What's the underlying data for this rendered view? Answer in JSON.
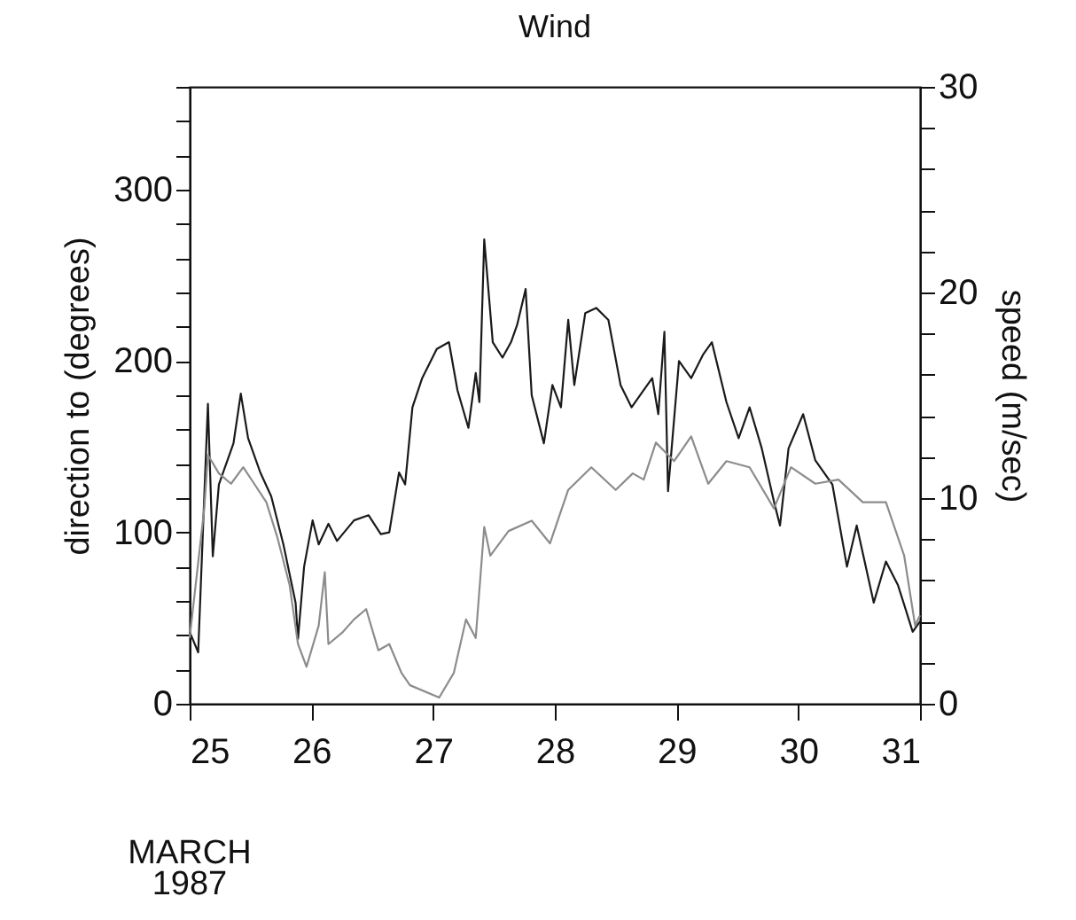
{
  "chart_data": {
    "type": "line",
    "title": "Wind",
    "ylabel": "direction to (degrees)",
    "y2label": "speed (m/sec)",
    "annotations": [
      "MARCH",
      "1987"
    ],
    "xlim": [
      25,
      31
    ],
    "xticks": [
      25,
      26,
      27,
      28,
      29,
      30,
      31
    ],
    "ylim": [
      0,
      360
    ],
    "yticks": [
      0,
      {
        "value": 20,
        "label": null
      },
      {
        "value": 40,
        "label": null
      },
      {
        "value": 60,
        "label": null
      },
      {
        "value": 80,
        "label": null
      },
      100,
      {
        "value": 120,
        "label": null
      },
      {
        "value": 140,
        "label": null
      },
      {
        "value": 160,
        "label": null
      },
      {
        "value": 180,
        "label": null
      },
      200,
      {
        "value": 220,
        "label": null
      },
      {
        "value": 240,
        "label": null
      },
      {
        "value": 260,
        "label": null
      },
      {
        "value": 280,
        "label": null
      },
      300,
      {
        "value": 320,
        "label": null
      },
      {
        "value": 340,
        "label": null
      },
      {
        "value": 360,
        "label": null
      }
    ],
    "y2lim": [
      0,
      30
    ],
    "y2ticks": [
      0,
      {
        "value": 2,
        "label": null
      },
      {
        "value": 4,
        "label": null
      },
      {
        "value": 6,
        "label": null
      },
      {
        "value": 8,
        "label": null
      },
      10,
      {
        "value": 12,
        "label": null
      },
      {
        "value": 14,
        "label": null
      },
      {
        "value": 16,
        "label": null
      },
      {
        "value": 18,
        "label": null
      },
      20,
      {
        "value": 22,
        "label": null
      },
      {
        "value": 24,
        "label": null
      },
      {
        "value": 26,
        "label": null
      },
      {
        "value": 28,
        "label": null
      },
      30
    ],
    "series": [
      {
        "axis": "y",
        "color": "#1a1a1a",
        "x": [
          25.0,
          25.07,
          25.12,
          25.15,
          25.19,
          25.24,
          25.36,
          25.42,
          25.48,
          25.58,
          25.67,
          25.77,
          25.87,
          25.89,
          25.94,
          26.01,
          26.06,
          26.14,
          26.21,
          26.35,
          26.47,
          26.57,
          26.64,
          26.72,
          26.77,
          26.83,
          26.91,
          27.03,
          27.13,
          27.2,
          27.29,
          27.35,
          27.38,
          27.42,
          27.49,
          27.57,
          27.64,
          27.69,
          27.76,
          27.81,
          27.91,
          27.98,
          28.05,
          28.11,
          28.16,
          28.25,
          28.34,
          28.44,
          28.54,
          28.63,
          28.73,
          28.8,
          28.85,
          28.9,
          28.93,
          29.02,
          29.12,
          29.22,
          29.29,
          29.41,
          29.51,
          29.6,
          29.7,
          29.8,
          29.85,
          29.92,
          30.04,
          30.14,
          30.28,
          30.4,
          30.48,
          30.62,
          30.72,
          30.82,
          30.94,
          31.0
        ],
        "values": [
          42,
          30,
          121,
          175,
          86,
          128,
          152,
          181,
          155,
          135,
          121,
          93,
          59,
          38,
          80,
          107,
          93,
          105,
          95,
          107,
          110,
          99,
          100,
          135,
          128,
          173,
          190,
          207,
          211,
          183,
          161,
          193,
          176,
          271,
          211,
          202,
          211,
          221,
          242,
          180,
          152,
          186,
          173,
          224,
          186,
          228,
          231,
          224,
          186,
          173,
          183,
          190,
          169,
          217,
          124,
          200,
          190,
          204,
          211,
          176,
          155,
          173,
          149,
          118,
          104,
          149,
          169,
          142,
          128,
          80,
          104,
          59,
          83,
          69,
          42,
          48
        ]
      },
      {
        "axis": "y2",
        "color": "#8c8c8c",
        "x": [
          25.0,
          25.12,
          25.15,
          25.24,
          25.34,
          25.44,
          25.53,
          25.63,
          25.72,
          25.82,
          25.89,
          25.96,
          26.06,
          26.11,
          26.14,
          26.26,
          26.35,
          26.45,
          26.55,
          26.64,
          26.74,
          26.81,
          27.05,
          27.17,
          27.27,
          27.35,
          27.42,
          27.47,
          27.62,
          27.81,
          27.96,
          28.11,
          28.3,
          28.5,
          28.64,
          28.73,
          28.83,
          28.98,
          29.12,
          29.26,
          29.41,
          29.6,
          29.8,
          29.94,
          30.14,
          30.33,
          30.53,
          30.72,
          30.87,
          30.96,
          31.0
        ],
        "values": [
          3.2,
          9.5,
          12.1,
          11.2,
          10.7,
          11.5,
          10.7,
          9.8,
          8.1,
          5.8,
          2.9,
          1.8,
          3.8,
          6.4,
          2.9,
          3.5,
          4.1,
          4.6,
          2.6,
          2.9,
          1.5,
          0.9,
          0.3,
          1.5,
          4.1,
          3.2,
          8.6,
          7.2,
          8.4,
          8.9,
          7.8,
          10.4,
          11.5,
          10.4,
          11.2,
          10.9,
          12.7,
          11.8,
          13.0,
          10.7,
          11.8,
          11.5,
          9.5,
          11.5,
          10.7,
          10.9,
          9.8,
          9.8,
          7.2,
          3.8,
          4.3
        ]
      }
    ]
  }
}
